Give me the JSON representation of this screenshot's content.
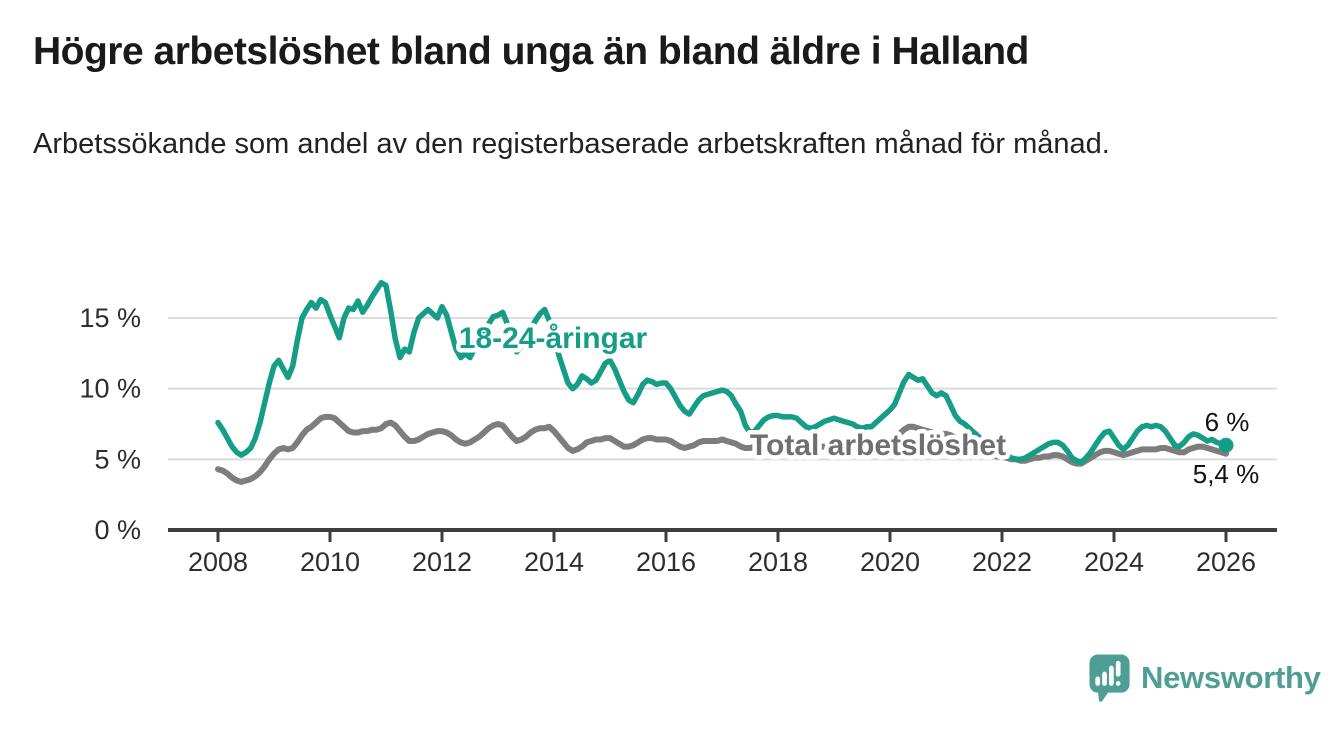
{
  "header": {
    "title": "Högre arbetslöshet bland unga än bland äldre i Halland",
    "subtitle": "Arbetssökande som andel av den registerbaserade arbetskraften månad för månad."
  },
  "chart_data": {
    "type": "line",
    "title": "Högre arbetslöshet bland unga än bland äldre i Halland",
    "xlabel": "",
    "ylabel": "",
    "x_start_year": 2008,
    "points_per_year": 12,
    "xlim": [
      2008,
      2026.9
    ],
    "ylim": [
      0,
      18
    ],
    "grid": "horizontal",
    "legend_position": "inline-labels",
    "x_ticks": [
      {
        "value": 2008,
        "label": "2008"
      },
      {
        "value": 2010,
        "label": "2010"
      },
      {
        "value": 2012,
        "label": "2012"
      },
      {
        "value": 2014,
        "label": "2014"
      },
      {
        "value": 2016,
        "label": "2016"
      },
      {
        "value": 2018,
        "label": "2018"
      },
      {
        "value": 2020,
        "label": "2020"
      },
      {
        "value": 2022,
        "label": "2022"
      },
      {
        "value": 2024,
        "label": "2024"
      },
      {
        "value": 2026,
        "label": "2026"
      }
    ],
    "y_ticks": [
      {
        "value": 0,
        "label": "0 %"
      },
      {
        "value": 5,
        "label": "5 %"
      },
      {
        "value": 10,
        "label": "10 %"
      },
      {
        "value": 15,
        "label": "15 %"
      }
    ],
    "series": [
      {
        "name": "Total arbetslöshet",
        "color": "#7d7d7d",
        "end_value_label": "5,4 %",
        "values": [
          4.3,
          4.2,
          4.0,
          3.7,
          3.5,
          3.4,
          3.5,
          3.6,
          3.8,
          4.1,
          4.5,
          5.0,
          5.4,
          5.7,
          5.8,
          5.7,
          5.8,
          6.2,
          6.7,
          7.1,
          7.3,
          7.6,
          7.9,
          8.0,
          8.0,
          7.9,
          7.6,
          7.3,
          7.0,
          6.9,
          6.9,
          7.0,
          7.0,
          7.1,
          7.1,
          7.2,
          7.5,
          7.6,
          7.4,
          7.0,
          6.6,
          6.3,
          6.3,
          6.4,
          6.6,
          6.8,
          6.9,
          7.0,
          7.0,
          6.9,
          6.7,
          6.4,
          6.2,
          6.1,
          6.2,
          6.4,
          6.6,
          6.9,
          7.2,
          7.4,
          7.5,
          7.4,
          7.0,
          6.6,
          6.3,
          6.4,
          6.6,
          6.9,
          7.1,
          7.2,
          7.2,
          7.3,
          7.0,
          6.6,
          6.2,
          5.8,
          5.6,
          5.7,
          5.9,
          6.2,
          6.3,
          6.4,
          6.4,
          6.5,
          6.5,
          6.3,
          6.1,
          5.9,
          5.9,
          6.0,
          6.2,
          6.4,
          6.5,
          6.5,
          6.4,
          6.4,
          6.4,
          6.3,
          6.1,
          5.9,
          5.8,
          5.9,
          6.0,
          6.2,
          6.3,
          6.3,
          6.3,
          6.3,
          6.4,
          6.3,
          6.2,
          6.1,
          5.9,
          5.8,
          5.8,
          5.9,
          6.0,
          6.0,
          6.1,
          6.1,
          6.1,
          6.0,
          5.9,
          5.8,
          5.8,
          5.7,
          5.7,
          5.8,
          5.8,
          5.9,
          5.9,
          6.0,
          6.0,
          5.9,
          5.9,
          5.8,
          5.8,
          5.8,
          5.8,
          5.9,
          5.9,
          6.0,
          6.1,
          6.2,
          6.3,
          6.5,
          6.8,
          7.1,
          7.3,
          7.3,
          7.2,
          7.1,
          7.0,
          6.9,
          6.8,
          6.8,
          6.8,
          6.7,
          6.5,
          6.3,
          6.1,
          6.0,
          5.8,
          5.7,
          5.6,
          5.4,
          5.3,
          5.2,
          5.2,
          5.1,
          5.0,
          5.0,
          4.9,
          4.9,
          5.0,
          5.1,
          5.1,
          5.2,
          5.2,
          5.3,
          5.3,
          5.2,
          5.0,
          4.8,
          4.7,
          4.7,
          4.9,
          5.1,
          5.3,
          5.5,
          5.6,
          5.6,
          5.5,
          5.4,
          5.3,
          5.4,
          5.5,
          5.6,
          5.7,
          5.7,
          5.7,
          5.7,
          5.8,
          5.8,
          5.7,
          5.6,
          5.5,
          5.5,
          5.7,
          5.8,
          5.9,
          5.9,
          5.8,
          5.7,
          5.6,
          5.5,
          5.4
        ]
      },
      {
        "name": "18-24-åringar",
        "color": "#169d88",
        "end_value_label": "6 %",
        "values": [
          7.6,
          7.1,
          6.5,
          5.9,
          5.5,
          5.3,
          5.5,
          5.8,
          6.5,
          7.6,
          9.0,
          10.4,
          11.6,
          12.0,
          11.4,
          10.8,
          11.6,
          13.4,
          15.0,
          15.6,
          16.1,
          15.7,
          16.3,
          16.1,
          15.2,
          14.4,
          13.6,
          15.0,
          15.7,
          15.6,
          16.2,
          15.4,
          15.9,
          16.5,
          17.0,
          17.5,
          17.3,
          15.5,
          13.5,
          12.2,
          12.8,
          12.6,
          14.0,
          15.0,
          15.3,
          15.6,
          15.3,
          15.0,
          15.8,
          15.2,
          14.0,
          12.8,
          12.2,
          12.5,
          12.2,
          12.9,
          13.4,
          14.0,
          14.6,
          15.1,
          15.2,
          15.4,
          14.6,
          13.2,
          12.6,
          13.0,
          13.6,
          14.2,
          14.8,
          15.3,
          15.6,
          14.8,
          13.8,
          12.4,
          11.4,
          10.4,
          10.0,
          10.3,
          10.9,
          10.7,
          10.4,
          10.6,
          11.2,
          11.8,
          12.0,
          11.4,
          10.6,
          9.8,
          9.2,
          9.0,
          9.6,
          10.3,
          10.6,
          10.5,
          10.3,
          10.4,
          10.4,
          10.0,
          9.4,
          8.8,
          8.4,
          8.2,
          8.7,
          9.2,
          9.5,
          9.6,
          9.7,
          9.8,
          9.9,
          9.8,
          9.5,
          8.9,
          8.4,
          7.4,
          6.9,
          7.0,
          7.4,
          7.8,
          8.0,
          8.1,
          8.1,
          8.0,
          8.0,
          8.0,
          7.9,
          7.6,
          7.3,
          7.2,
          7.3,
          7.5,
          7.7,
          7.8,
          7.9,
          7.8,
          7.7,
          7.6,
          7.5,
          7.3,
          7.2,
          7.3,
          7.3,
          7.6,
          7.9,
          8.2,
          8.5,
          8.9,
          9.7,
          10.5,
          11.0,
          10.8,
          10.6,
          10.7,
          10.2,
          9.7,
          9.5,
          9.7,
          9.5,
          8.8,
          8.1,
          7.7,
          7.5,
          7.2,
          6.9,
          6.6,
          6.3,
          6.1,
          5.9,
          5.7,
          5.5,
          5.3,
          5.1,
          5.0,
          5.0,
          5.1,
          5.3,
          5.5,
          5.7,
          5.9,
          6.1,
          6.2,
          6.2,
          6.0,
          5.6,
          5.1,
          4.9,
          4.8,
          5.1,
          5.5,
          6.0,
          6.5,
          6.9,
          7.0,
          6.5,
          6.0,
          5.7,
          6.0,
          6.5,
          7.0,
          7.3,
          7.4,
          7.3,
          7.4,
          7.3,
          7.0,
          6.5,
          6.0,
          5.9,
          6.2,
          6.6,
          6.8,
          6.7,
          6.5,
          6.3,
          6.4,
          6.2,
          6.1,
          6.0
        ]
      }
    ],
    "annotations": {
      "young_series_label": "18-24-åringar",
      "total_series_label": "Total arbetslöshet",
      "end_value_young": "6 %",
      "end_value_total": "5,4 %"
    }
  },
  "footer": {
    "brand": "Newsworthy"
  },
  "colors": {
    "teal": "#169d88",
    "gray_line": "#7d7d7d",
    "gray_label": "#6f6f6f",
    "logo_teal": "#4f9e95",
    "axis": "#3e3e3e",
    "grid": "#dcdcdc",
    "tick_text": "#2e2e2e",
    "end_label_text": "#111111"
  }
}
